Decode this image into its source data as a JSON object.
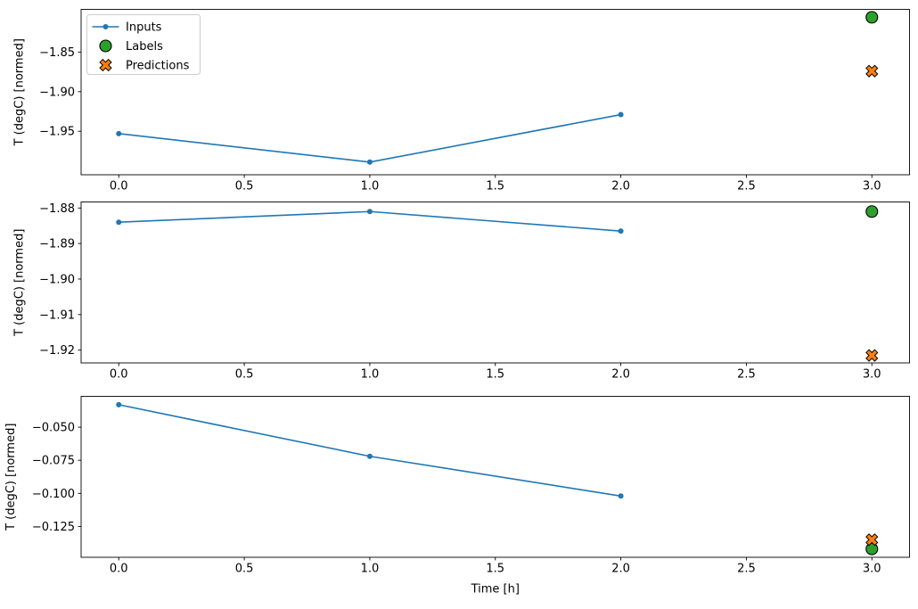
{
  "figure": {
    "xlabel": "Time [h]",
    "background": "#ffffff",
    "axis_color": "#000000"
  },
  "legend": {
    "position": "upper-left",
    "border_color": "#cccccc",
    "items": [
      {
        "label": "Inputs",
        "marker": "line-dot",
        "color": "#1f77b4"
      },
      {
        "label": "Labels",
        "marker": "circle",
        "color": "#2ca02c"
      },
      {
        "label": "Predictions",
        "marker": "x-cross",
        "color": "#ff7f0e"
      }
    ]
  },
  "chart_data": [
    {
      "type": "line",
      "title": "",
      "ylabel": "T (degC) [normed]",
      "xlim": [
        -0.15,
        3.15
      ],
      "ylim": [
        -2.005,
        -1.796
      ],
      "grid": false,
      "x_ticks": [
        0,
        0.5,
        1,
        1.5,
        2,
        2.5,
        3
      ],
      "x_tick_labels": [
        "0.0",
        "0.5",
        "1.0",
        "1.5",
        "2.0",
        "2.5",
        "3.0"
      ],
      "y_ticks": [
        -1.85,
        -1.9,
        -1.95
      ],
      "y_tick_labels": [
        "−1.85",
        "−1.90",
        "−1.95"
      ],
      "series": [
        {
          "name": "Inputs",
          "kind": "line",
          "marker": "dot",
          "color": "#1f77b4",
          "x": [
            0,
            1,
            2
          ],
          "y": [
            -1.953,
            -1.989,
            -1.929
          ]
        },
        {
          "name": "Labels",
          "kind": "scatter",
          "marker": "circle",
          "color": "#2ca02c",
          "edge_color": "#000000",
          "x": [
            3
          ],
          "y": [
            -1.806
          ]
        },
        {
          "name": "Predictions",
          "kind": "scatter",
          "marker": "X",
          "color": "#ff7f0e",
          "edge_color": "#000000",
          "x": [
            3
          ],
          "y": [
            -1.874
          ]
        }
      ]
    },
    {
      "type": "line",
      "title": "",
      "ylabel": "T (degC) [normed]",
      "xlim": [
        -0.15,
        3.15
      ],
      "ylim": [
        -1.9236,
        -1.8783
      ],
      "grid": false,
      "x_ticks": [
        0,
        0.5,
        1,
        1.5,
        2,
        2.5,
        3
      ],
      "x_tick_labels": [
        "0.0",
        "0.5",
        "1.0",
        "1.5",
        "2.0",
        "2.5",
        "3.0"
      ],
      "y_ticks": [
        -1.88,
        -1.89,
        -1.9,
        -1.91,
        -1.92
      ],
      "y_tick_labels": [
        "−1.88",
        "−1.89",
        "−1.90",
        "−1.91",
        "−1.92"
      ],
      "series": [
        {
          "name": "Inputs",
          "kind": "line",
          "marker": "dot",
          "color": "#1f77b4",
          "x": [
            0,
            1,
            2
          ],
          "y": [
            -1.884,
            -1.881,
            -1.8865
          ]
        },
        {
          "name": "Labels",
          "kind": "scatter",
          "marker": "circle",
          "color": "#2ca02c",
          "edge_color": "#000000",
          "x": [
            3
          ],
          "y": [
            -1.881
          ]
        },
        {
          "name": "Predictions",
          "kind": "scatter",
          "marker": "X",
          "color": "#ff7f0e",
          "edge_color": "#000000",
          "x": [
            3
          ],
          "y": [
            -1.9215
          ]
        }
      ]
    },
    {
      "type": "line",
      "title": "",
      "xlabel": "Time [h]",
      "ylabel": "T (degC) [normed]",
      "xlim": [
        -0.15,
        3.15
      ],
      "ylim": [
        -0.1483,
        -0.0267
      ],
      "grid": false,
      "x_ticks": [
        0,
        0.5,
        1,
        1.5,
        2,
        2.5,
        3
      ],
      "x_tick_labels": [
        "0.0",
        "0.5",
        "1.0",
        "1.5",
        "2.0",
        "2.5",
        "3.0"
      ],
      "y_ticks": [
        -0.05,
        -0.075,
        -0.1,
        -0.125
      ],
      "y_tick_labels": [
        "−0.050",
        "−0.075",
        "−0.100",
        "−0.125"
      ],
      "series": [
        {
          "name": "Inputs",
          "kind": "line",
          "marker": "dot",
          "color": "#1f77b4",
          "x": [
            0,
            1,
            2
          ],
          "y": [
            -0.033,
            -0.072,
            -0.102
          ]
        },
        {
          "name": "Labels",
          "kind": "scatter",
          "marker": "circle",
          "color": "#2ca02c",
          "edge_color": "#000000",
          "x": [
            3
          ],
          "y": [
            -0.142
          ]
        },
        {
          "name": "Predictions",
          "kind": "scatter",
          "marker": "X",
          "color": "#ff7f0e",
          "edge_color": "#000000",
          "x": [
            3
          ],
          "y": [
            -0.135
          ]
        }
      ]
    }
  ]
}
